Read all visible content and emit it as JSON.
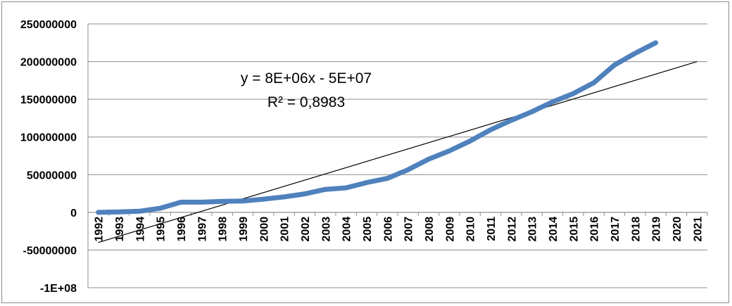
{
  "chart_data": {
    "type": "line",
    "title": "",
    "xlabel": "",
    "ylabel": "",
    "categories": [
      "1992",
      "1993",
      "1994",
      "1995",
      "1996",
      "1997",
      "1998",
      "1999",
      "2000",
      "2001",
      "2002",
      "2003",
      "2004",
      "2005",
      "2006",
      "2007",
      "2008",
      "2009",
      "2010",
      "2011",
      "2012",
      "2013",
      "2014",
      "2015",
      "2016",
      "2017",
      "2018",
      "2019",
      "2020",
      "2021"
    ],
    "ylim": [
      -100000000,
      250000000
    ],
    "yticks": [
      250000000,
      200000000,
      150000000,
      100000000,
      50000000,
      0,
      -50000000,
      -100000000
    ],
    "ytick_labels": [
      "250000000",
      "200000000",
      "150000000",
      "100000000",
      "50000000",
      "0",
      "-50000000",
      "-1E+08"
    ],
    "grid": "horizontal",
    "legend": "none",
    "series": [
      {
        "values": [
          0,
          500000,
          1500000,
          5500000,
          13500000,
          13500000,
          14500000,
          15000000,
          17500000,
          20500000,
          24500000,
          30500000,
          32500000,
          39500000,
          45000000,
          56500000,
          70500000,
          81500000,
          94500000,
          109500000,
          122000000,
          133500000,
          146500000,
          157500000,
          172000000,
          195500000,
          211000000,
          225000000,
          null,
          null
        ],
        "color": "#4f81bd"
      }
    ],
    "trendline": {
      "type": "linear",
      "color": "#000000",
      "start_value": -40000000,
      "end_value": 200000000,
      "equation": "y = 8E+06x - 5E+07",
      "r_squared": "R² = 0,8983"
    }
  }
}
